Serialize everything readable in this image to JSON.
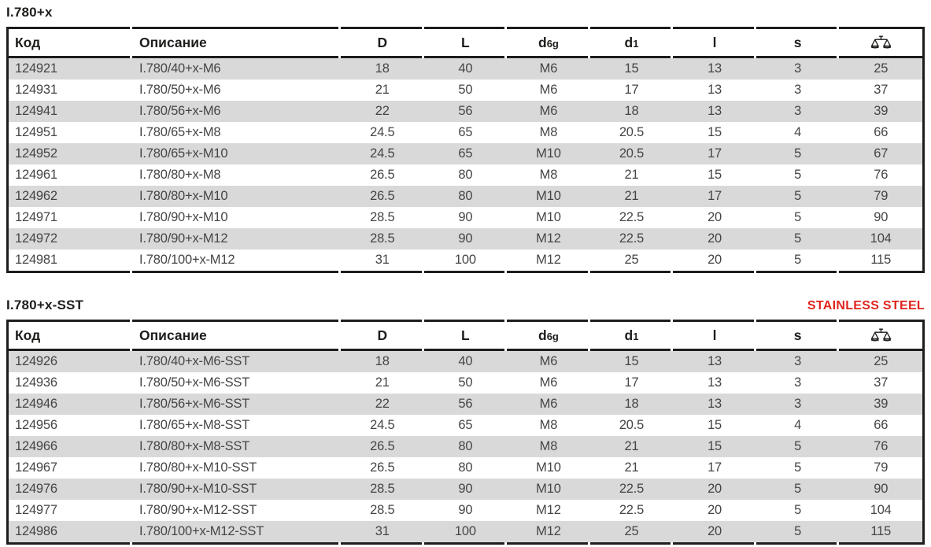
{
  "colors": {
    "accent_red": "#e0251f",
    "row_stripe_gray": "#d9d9d9",
    "table_line_black": "#1d1d1b",
    "body_text_gray": "#454545"
  },
  "headers": {
    "code": "Код",
    "description": "Описание",
    "col_d": "D",
    "col_l_upper": "L",
    "col_d6g": {
      "main": "d",
      "sub": "6g"
    },
    "col_d1": {
      "main": "d",
      "sub": "1"
    },
    "col_l_lower": "l",
    "col_s": "s",
    "weight_icon": "scales-icon"
  },
  "tables": [
    {
      "title": "I.780+x",
      "rows": [
        [
          "124921",
          "I.780/40+x-M6",
          "18",
          "40",
          "M6",
          "15",
          "13",
          "3",
          "25"
        ],
        [
          "124931",
          "I.780/50+x-M6",
          "21",
          "50",
          "M6",
          "17",
          "13",
          "3",
          "37"
        ],
        [
          "124941",
          "I.780/56+x-M6",
          "22",
          "56",
          "M6",
          "18",
          "13",
          "3",
          "39"
        ],
        [
          "124951",
          "I.780/65+x-M8",
          "24.5",
          "65",
          "M8",
          "20.5",
          "15",
          "4",
          "66"
        ],
        [
          "124952",
          "I.780/65+x-M10",
          "24.5",
          "65",
          "M10",
          "20.5",
          "17",
          "5",
          "67"
        ],
        [
          "124961",
          "I.780/80+x-M8",
          "26.5",
          "80",
          "M8",
          "21",
          "15",
          "5",
          "76"
        ],
        [
          "124962",
          "I.780/80+x-M10",
          "26.5",
          "80",
          "M10",
          "21",
          "17",
          "5",
          "79"
        ],
        [
          "124971",
          "I.780/90+x-M10",
          "28.5",
          "90",
          "M10",
          "22.5",
          "20",
          "5",
          "90"
        ],
        [
          "124972",
          "I.780/90+x-M12",
          "28.5",
          "90",
          "M12",
          "22.5",
          "20",
          "5",
          "104"
        ],
        [
          "124981",
          "I.780/100+x-M12",
          "31",
          "100",
          "M12",
          "25",
          "20",
          "5",
          "115"
        ]
      ]
    },
    {
      "title": "I.780+x-SST",
      "badge": "STAINLESS STEEL",
      "rows": [
        [
          "124926",
          "I.780/40+x-M6-SST",
          "18",
          "40",
          "M6",
          "15",
          "13",
          "3",
          "25"
        ],
        [
          "124936",
          "I.780/50+x-M6-SST",
          "21",
          "50",
          "M6",
          "17",
          "13",
          "3",
          "37"
        ],
        [
          "124946",
          "I.780/56+x-M6-SST",
          "22",
          "56",
          "M6",
          "18",
          "13",
          "3",
          "39"
        ],
        [
          "124956",
          "I.780/65+x-M8-SST",
          "24.5",
          "65",
          "M8",
          "20.5",
          "15",
          "4",
          "66"
        ],
        [
          "124966",
          "I.780/80+x-M8-SST",
          "26.5",
          "80",
          "M8",
          "21",
          "15",
          "5",
          "76"
        ],
        [
          "124967",
          "I.780/80+x-M10-SST",
          "26.5",
          "80",
          "M10",
          "21",
          "17",
          "5",
          "79"
        ],
        [
          "124976",
          "I.780/90+x-M10-SST",
          "28.5",
          "90",
          "M10",
          "22.5",
          "20",
          "5",
          "90"
        ],
        [
          "124977",
          "I.780/90+x-M12-SST",
          "28.5",
          "90",
          "M12",
          "22.5",
          "20",
          "5",
          "104"
        ],
        [
          "124986",
          "I.780/100+x-M12-SST",
          "31",
          "100",
          "M12",
          "25",
          "20",
          "5",
          "115"
        ]
      ]
    }
  ]
}
